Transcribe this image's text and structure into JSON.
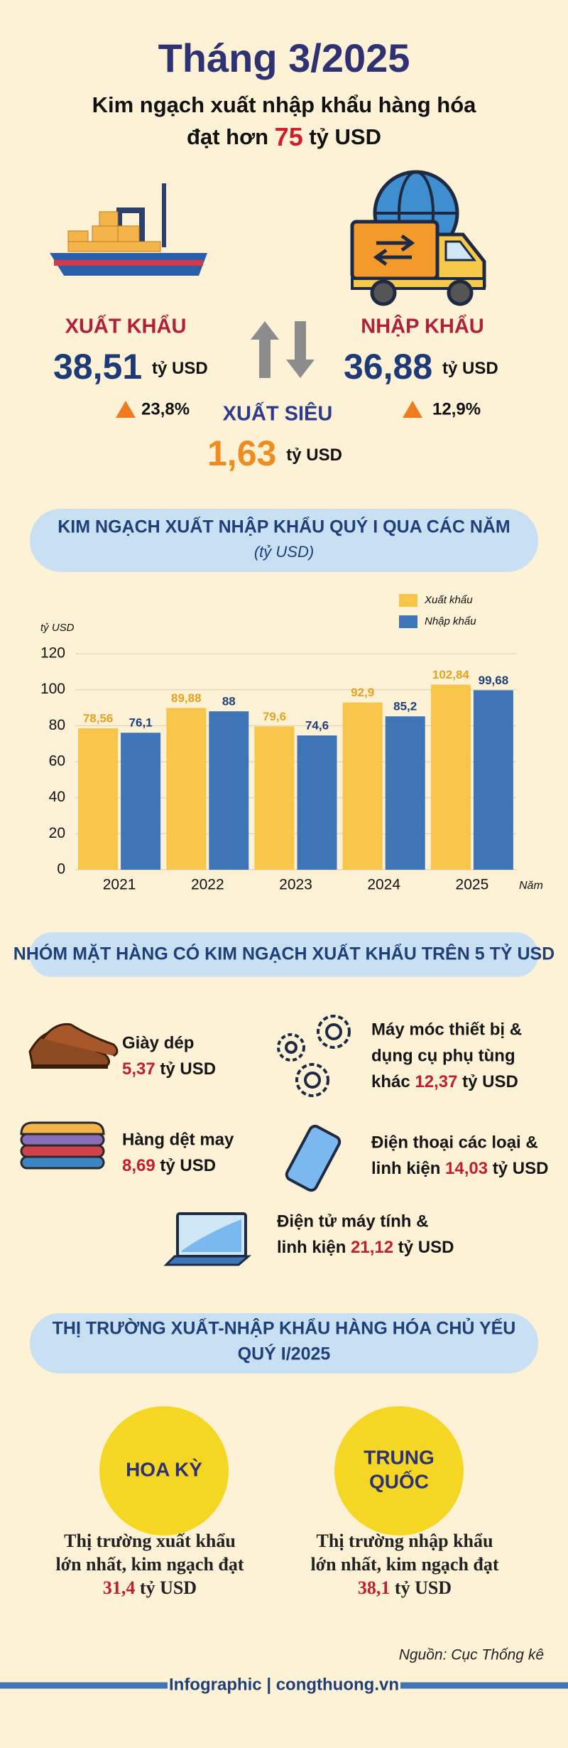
{
  "header": {
    "title": "Tháng 3/2025",
    "subtitle_line1": "Kim ngạch xuất nhập khẩu hàng hóa",
    "subtitle_line2": {
      "prefix": "đạt hơn",
      "highlight": "75",
      "suffix": "tỷ USD"
    }
  },
  "summary": {
    "export": {
      "label": "XUẤT KHẨU",
      "value": "38,51",
      "unit": "tỷ USD",
      "growth": "23,8%"
    },
    "import": {
      "label": "NHẬP KHẨU",
      "value": "36,88",
      "unit": "tỷ USD",
      "growth": "12,9%"
    },
    "surplus": {
      "label": "XUẤT SIÊU",
      "value": "1,63",
      "unit": "tỷ USD"
    }
  },
  "chart_data": {
    "type": "bar",
    "title": "KIM NGẠCH XUẤT NHẬP KHẨU QUÝ I QUA CÁC NĂM",
    "subtitle": "(tỷ USD)",
    "y_label": "tỷ USD",
    "x_label": "Năm",
    "categories": [
      "2021",
      "2022",
      "2023",
      "2024",
      "2025"
    ],
    "series": [
      {
        "name": "Xuất khẩu",
        "color": "#f6c54a",
        "values": [
          78.56,
          89.88,
          79.6,
          92.9,
          102.84
        ],
        "value_labels": [
          "78,56",
          "89,88",
          "79,6",
          "92,9",
          "102,84"
        ]
      },
      {
        "name": "Nhập khẩu",
        "color": "#3e74b8",
        "values": [
          76.1,
          88,
          74.6,
          85.2,
          99.68
        ],
        "value_labels": [
          "76,1",
          "88",
          "74,6",
          "85,2",
          "99,68"
        ]
      }
    ],
    "ylim": [
      0,
      120
    ],
    "yticks": [
      0,
      20,
      40,
      60,
      80,
      100,
      120
    ],
    "grid": true,
    "legend": "top-right"
  },
  "products_section": {
    "title": "NHÓM MẶT HÀNG CÓ KIM NGẠCH XUẤT KHẨU TRÊN 5 TỶ USD",
    "items": [
      {
        "lines": [
          "Giày dép"
        ],
        "value": "5,37",
        "unit": "tỷ USD"
      },
      {
        "lines": [
          "Máy móc thiết bị &",
          "dụng cụ phụ tùng"
        ],
        "last_line": "khác",
        "value": "12,37",
        "unit": "tỷ USD"
      },
      {
        "lines": [
          "Hàng dệt may"
        ],
        "value": "8,69",
        "unit": "tỷ USD"
      },
      {
        "lines": [
          "Điện thoại các loại &"
        ],
        "last_line": "linh kiện",
        "value": "14,03",
        "unit": "tỷ USD"
      },
      {
        "lines": [
          "Điện tử máy tính &"
        ],
        "last_line": "linh kiện",
        "value": "21,12",
        "unit": "tỷ USD"
      }
    ]
  },
  "markets_section": {
    "title_lines": [
      "THỊ TRƯỜNG XUẤT-NHẬP KHẨU HÀNG HÓA CHỦ YẾU",
      "QUÝ I/2025"
    ],
    "markets": [
      {
        "name_lines": [
          "HOA KỲ"
        ],
        "description_lines": [
          "Thị trường xuất khẩu",
          "lớn nhất, kim ngạch đạt"
        ],
        "value": "31,4",
        "unit": "tỷ USD"
      },
      {
        "name_lines": [
          "TRUNG",
          "QUỐC"
        ],
        "description_lines": [
          "Thị trường nhập khẩu",
          "lớn nhất, kim ngạch đạt"
        ],
        "value": "38,1",
        "unit": "tỷ USD"
      }
    ]
  },
  "footer": {
    "source": "Nguồn: Cục Thống kê",
    "brand": "Infographic | congthuong.vn"
  }
}
